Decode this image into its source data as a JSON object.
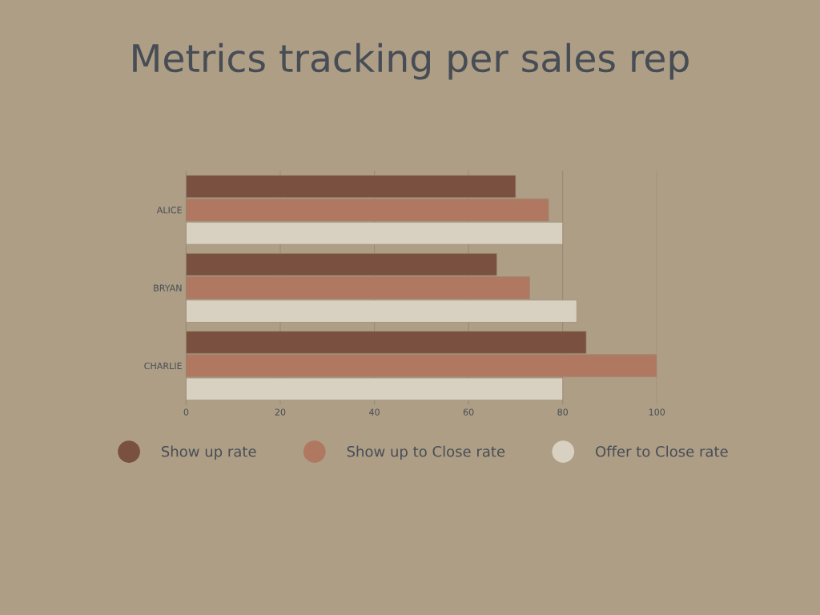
{
  "chart_data": {
    "type": "bar",
    "orientation": "horizontal",
    "title": "Metrics tracking per sales rep",
    "categories": [
      "ALICE",
      "BRYAN",
      "CHARLIE"
    ],
    "series": [
      {
        "name": "Show up rate",
        "color": "#7a5040",
        "values": [
          70,
          66,
          85
        ]
      },
      {
        "name": "Show up to Close rate",
        "color": "#b07860",
        "values": [
          77,
          73,
          100
        ]
      },
      {
        "name": "Offer to Close rate",
        "color": "#d8d0c0",
        "values": [
          80,
          83,
          80
        ]
      }
    ],
    "xlim": [
      0,
      100
    ],
    "xticks": [
      0,
      20,
      40,
      60,
      80,
      100
    ],
    "grid": "x",
    "legend": "bottom"
  }
}
